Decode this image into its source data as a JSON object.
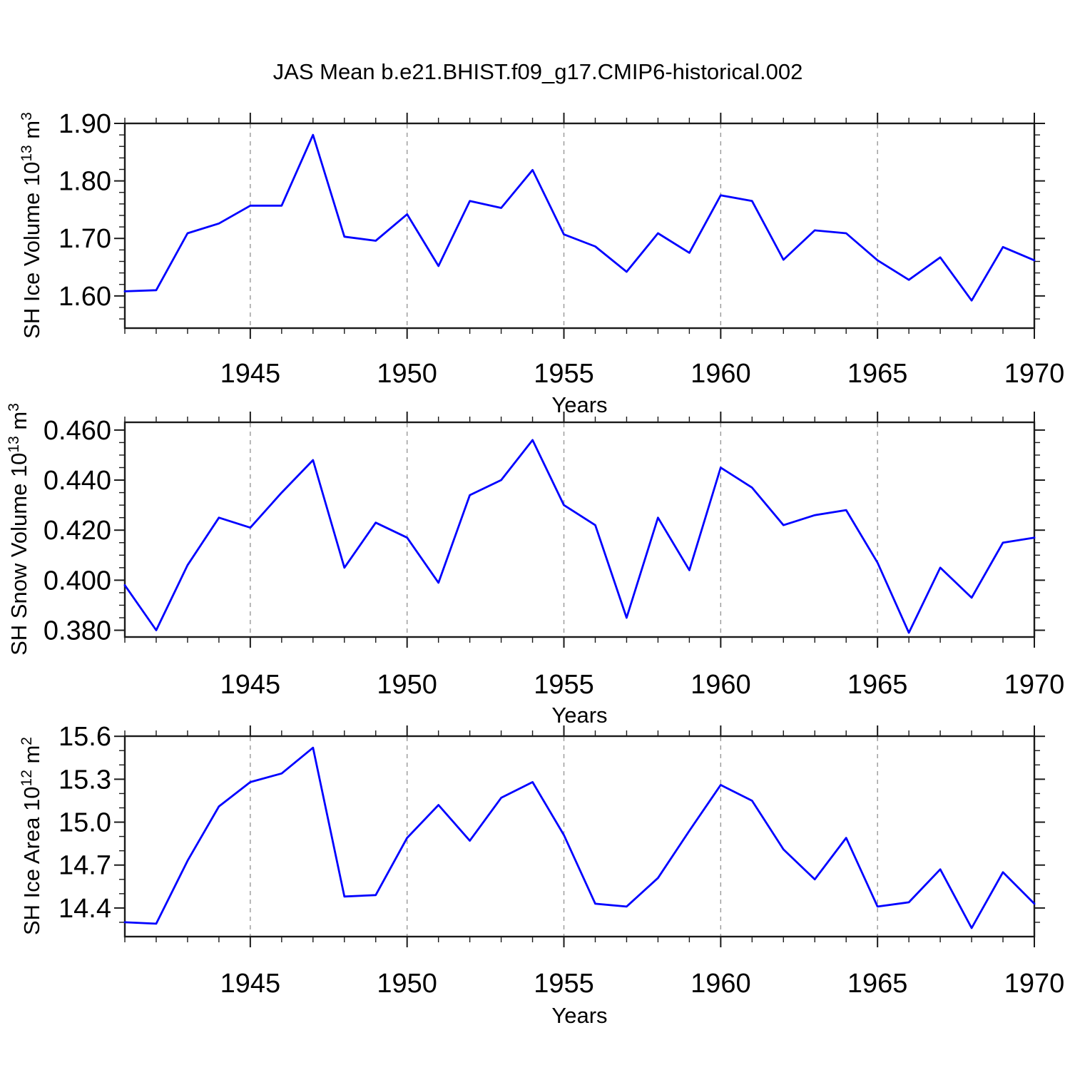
{
  "title": "JAS Mean b.e21.BHIST.f09_g17.CMIP6-historical.002",
  "xlabel": "Years",
  "line_color": "#0000ff",
  "frame_color": "#1a1a1a",
  "gridline_color": "#999999",
  "years": [
    1941,
    1942,
    1943,
    1944,
    1945,
    1946,
    1947,
    1948,
    1949,
    1950,
    1951,
    1952,
    1953,
    1954,
    1955,
    1956,
    1957,
    1958,
    1959,
    1960,
    1961,
    1962,
    1963,
    1964,
    1965,
    1966,
    1967,
    1968,
    1969,
    1970
  ],
  "panels": [
    {
      "ylabel_main": "SH Ice Volume 10",
      "ylabel_sup": "13",
      "ylabel_unit": " m",
      "ylabel_unit_sup": "3",
      "xlabel": "Years"
    },
    {
      "ylabel_main": "SH Snow Volume 10",
      "ylabel_sup": "13",
      "ylabel_unit": " m",
      "ylabel_unit_sup": "3",
      "xlabel": "Years"
    },
    {
      "ylabel_main": "SH Ice Area 10",
      "ylabel_sup": "12",
      "ylabel_unit": " m",
      "ylabel_unit_sup": "2",
      "xlabel": "Years"
    }
  ],
  "chart_data": [
    {
      "type": "line",
      "series_name": "SH Ice Volume",
      "title": "JAS Mean b.e21.BHIST.f09_g17.CMIP6-historical.002",
      "xlabel": "Years",
      "ylabel": "SH Ice Volume 10^13 m^3",
      "x": [
        1941,
        1942,
        1943,
        1944,
        1945,
        1946,
        1947,
        1948,
        1949,
        1950,
        1951,
        1952,
        1953,
        1954,
        1955,
        1956,
        1957,
        1958,
        1959,
        1960,
        1961,
        1962,
        1963,
        1964,
        1965,
        1966,
        1967,
        1968,
        1969,
        1970
      ],
      "values": [
        1.608,
        1.61,
        1.709,
        1.726,
        1.757,
        1.757,
        1.88,
        1.703,
        1.696,
        1.742,
        1.652,
        1.765,
        1.753,
        1.819,
        1.707,
        1.686,
        1.642,
        1.709,
        1.675,
        1.775,
        1.765,
        1.663,
        1.714,
        1.709,
        1.662,
        1.628,
        1.667,
        1.592,
        1.685,
        1.662
      ],
      "xlim": [
        1941,
        1970
      ],
      "ylim": [
        1.544,
        1.9
      ],
      "xticks": [
        1945,
        1950,
        1955,
        1960,
        1965,
        1970
      ],
      "xtick_labels": [
        "1945",
        "1950",
        "1955",
        "1960",
        "1965",
        "1970"
      ],
      "xminor_step": 1,
      "yticks": [
        1.6,
        1.7,
        1.8,
        1.9
      ],
      "ytick_labels": [
        "1.60",
        "1.70",
        "1.80",
        "1.90"
      ],
      "yminor_step": 0.02,
      "grid": "vertical dashed lines at 1945,1950,1955,1960,1965",
      "legend": "none"
    },
    {
      "type": "line",
      "series_name": "SH Snow Volume",
      "title": "",
      "xlabel": "Years",
      "ylabel": "SH Snow Volume 10^13 m^3",
      "x": [
        1941,
        1942,
        1943,
        1944,
        1945,
        1946,
        1947,
        1948,
        1949,
        1950,
        1951,
        1952,
        1953,
        1954,
        1955,
        1956,
        1957,
        1958,
        1959,
        1960,
        1961,
        1962,
        1963,
        1964,
        1965,
        1966,
        1967,
        1968,
        1969,
        1970
      ],
      "values": [
        0.398,
        0.38,
        0.406,
        0.425,
        0.421,
        0.435,
        0.448,
        0.405,
        0.423,
        0.417,
        0.399,
        0.434,
        0.44,
        0.456,
        0.43,
        0.422,
        0.385,
        0.425,
        0.404,
        0.445,
        0.437,
        0.422,
        0.426,
        0.428,
        0.407,
        0.379,
        0.405,
        0.393,
        0.415,
        0.417
      ],
      "xlim": [
        1941,
        1970
      ],
      "ylim": [
        0.3773,
        0.4631
      ],
      "xticks": [
        1945,
        1950,
        1955,
        1960,
        1965,
        1970
      ],
      "xtick_labels": [
        "1945",
        "1950",
        "1955",
        "1960",
        "1965",
        "1970"
      ],
      "xminor_step": 1,
      "yticks": [
        0.38,
        0.4,
        0.42,
        0.44,
        0.46
      ],
      "ytick_labels": [
        "0.380",
        "0.400",
        "0.420",
        "0.440",
        "0.460"
      ],
      "yminor_step": 0.005,
      "grid": "vertical dashed lines at 1945,1950,1955,1960,1965",
      "legend": "none"
    },
    {
      "type": "line",
      "series_name": "SH Ice Area",
      "title": "",
      "xlabel": "Years",
      "ylabel": "SH Ice Area 10^12 m^2",
      "x": [
        1941,
        1942,
        1943,
        1944,
        1945,
        1946,
        1947,
        1948,
        1949,
        1950,
        1951,
        1952,
        1953,
        1954,
        1955,
        1956,
        1957,
        1958,
        1959,
        1960,
        1961,
        1962,
        1963,
        1964,
        1965,
        1966,
        1967,
        1968,
        1969,
        1970
      ],
      "values": [
        14.3,
        14.29,
        14.73,
        15.11,
        15.28,
        15.34,
        15.52,
        14.48,
        14.49,
        14.89,
        15.12,
        14.87,
        15.17,
        15.28,
        14.91,
        14.43,
        14.41,
        14.61,
        14.94,
        15.26,
        15.15,
        14.81,
        14.6,
        14.89,
        14.41,
        14.44,
        14.67,
        14.26,
        14.65,
        14.43
      ],
      "xlim": [
        1941,
        1970
      ],
      "ylim": [
        14.2,
        15.601
      ],
      "xticks": [
        1945,
        1950,
        1955,
        1960,
        1965,
        1970
      ],
      "xtick_labels": [
        "1945",
        "1950",
        "1955",
        "1960",
        "1965",
        "1970"
      ],
      "xminor_step": 1,
      "yticks": [
        14.4,
        14.7,
        15.0,
        15.3,
        15.6
      ],
      "ytick_labels": [
        "14.4",
        "14.7",
        "15.0",
        "15.3",
        "15.6"
      ],
      "yminor_step": 0.1,
      "grid": "vertical dashed lines at 1945,1950,1955,1960,1965",
      "legend": "none"
    }
  ]
}
